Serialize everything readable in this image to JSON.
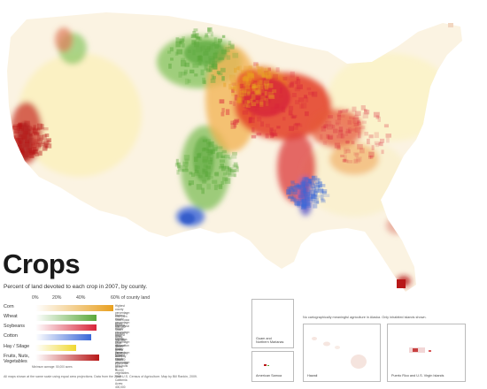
{
  "title": "Crops",
  "subtitle": "Percent of land devoted to each crop in 2007, by county.",
  "scale": {
    "ticks": [
      "0%",
      "20%",
      "40%",
      "60% of county land"
    ]
  },
  "legend": [
    {
      "label": "Corn",
      "color": "#e8a020",
      "bar_fraction": 1.0,
      "note": "Highest county percentage: 69% corn\nState: Iowa   Acres: 500,000"
    },
    {
      "label": "Wheat",
      "color": "#5aa83a",
      "bar_fraction": 0.78,
      "note": "Highest county percentage: 58% wheat\nState: Kansas   Acres: 300,000"
    },
    {
      "label": "Soybeans",
      "color": "#d8243a",
      "bar_fraction": 0.78,
      "note": "Highest county percentage: 59% soybeans\nState: Illinois   Acres: 250,000"
    },
    {
      "label": "Cotton",
      "color": "#3a68d8",
      "bar_fraction": 0.72,
      "note": "Highest county percentage: 48% cotton\nState: Texas   Acres: 120,000"
    },
    {
      "label": "Hay / Silage",
      "color": "#f0d830",
      "bar_fraction": 0.52,
      "note": "Highest county percentage: 34% hay\nState: Wisconsin   Acres: 90,000"
    },
    {
      "label": "Fruits, Nuts,\nVegetables",
      "color": "#b81818",
      "bar_fraction": 0.82,
      "note": "Highest county percentage: 58% fruits & vegetables\nState: California   Acres: 400,000"
    }
  ],
  "legend_small_note": "Minimum acreage: 50,000 acres",
  "footnote": "All maps shown at the same scale using equal area projections.  Data from the 2007 U.S. Census of Agriculture.  Map by Bill Rankin, 2009.",
  "alaska_note": "No cartographically meaningful agriculture in Alaska. Only inhabited islands shown.",
  "insets": [
    {
      "label": "Guam and\nNorthern Marianas"
    },
    {
      "label": "American Samoa"
    },
    {
      "label": "Hawaii"
    },
    {
      "label": "Puerto Rico and U.S. Virgin Islands"
    }
  ],
  "crop_colors": {
    "corn": "#e8a020",
    "wheat": "#5aa83a",
    "soybeans": "#d8243a",
    "cotton": "#3a68d8",
    "hay": "#f0d830",
    "fruits": "#b81818"
  }
}
